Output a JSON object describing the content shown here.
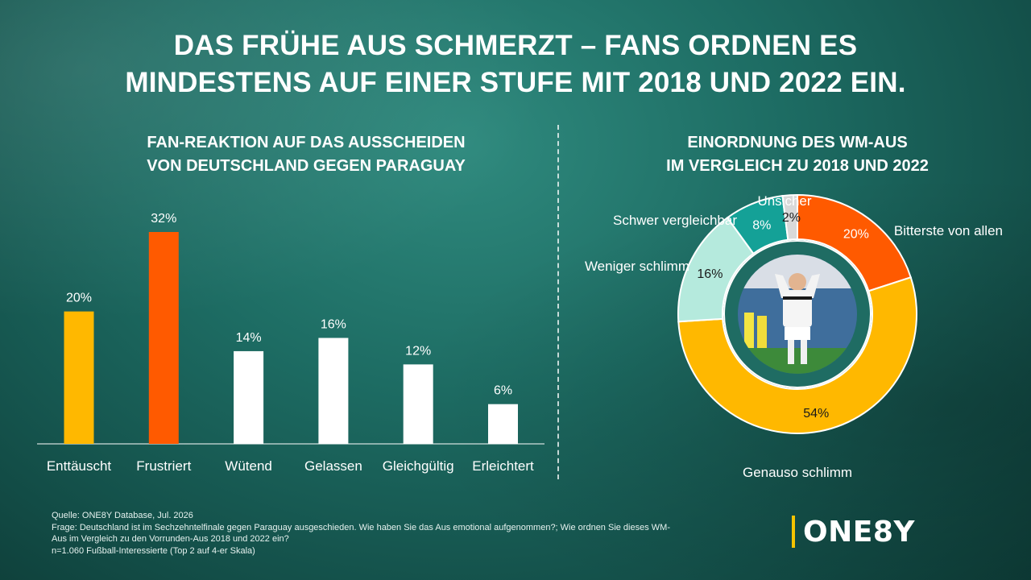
{
  "headline": {
    "line1": "DAS FRÜHE AUS SCHMERZT – FANS ORDNEN ES",
    "line2": "MINDESTENS AUF EINER STUFE MIT 2018 UND 2022 EIN."
  },
  "left_panel": {
    "subtitle_line1": "FAN-REAKTION AUF DAS AUSSCHEIDEN",
    "subtitle_line2": "VON DEUTSCHLAND GEGEN PARAGUAY"
  },
  "right_panel": {
    "subtitle_line1": "EINORDNUNG DES WM-AUS",
    "subtitle_line2": "IM VERGLEICH ZU 2018 UND 2022"
  },
  "colors": {
    "yellow": "#FFB800",
    "orange": "#FF5A00",
    "white": "#FFFFFF",
    "teal": "#14A197",
    "mint": "#B5EADD",
    "gray": "#D9D9D9",
    "dark_teal": "#1F6C63"
  },
  "chart_data": [
    {
      "type": "bar",
      "categories": [
        "Enttäuscht",
        "Frustriert",
        "Wütend",
        "Gelassen",
        "Gleichgültig",
        "Erleichtert"
      ],
      "values": [
        20,
        32,
        14,
        16,
        12,
        6
      ],
      "value_labels": [
        "20%",
        "32%",
        "14%",
        "16%",
        "12%",
        "6%"
      ],
      "colors": [
        "#FFB800",
        "#FF5A00",
        "#FFFFFF",
        "#FFFFFF",
        "#FFFFFF",
        "#FFFFFF"
      ],
      "ylim": [
        0,
        32
      ],
      "grid": false,
      "legend": "none"
    },
    {
      "type": "pie",
      "style": "donut",
      "labels": [
        "Bitterste von allen",
        "Genauso schlimm",
        "Weniger schlimm",
        "Schwer vergleichbar",
        "Unsicher"
      ],
      "values": [
        20,
        54,
        16,
        8,
        2
      ],
      "value_labels": [
        "20%",
        "54%",
        "16%",
        "8%",
        "2%"
      ],
      "colors": [
        "#FF5A00",
        "#FFB800",
        "#B5EADD",
        "#14A197",
        "#D9D9D9"
      ],
      "start": "top",
      "direction": "clockwise",
      "center_image": "photo of a football player in a white jersey with hands on head",
      "legend": "none"
    }
  ],
  "footnote": {
    "line1": "Quelle: ONE8Y Database, Jul. 2026",
    "line2": "Frage: Deutschland ist im Sechzehntelfinale gegen Paraguay ausgeschieden. Wie haben Sie das Aus emotional aufgenommen?; Wie ordnen Sie dieses WM-",
    "line3": "Aus im Vergleich zu den Vorrunden-Aus 2018 und 2022 ein?",
    "line4": "n=1.060 Fußball-Interessierte (Top 2 auf 4-er Skala)"
  },
  "logo": {
    "text": "ONE8Y"
  }
}
